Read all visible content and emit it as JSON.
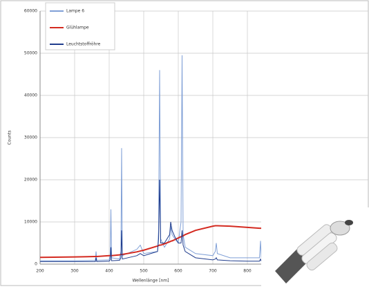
{
  "chart_data": {
    "type": "line",
    "x_label": "Wellenlänge [nm]",
    "y_label": "Counts",
    "x": [
      200,
      300,
      360,
      362,
      364,
      400,
      403,
      405,
      407,
      430,
      434,
      436,
      438,
      480,
      490,
      500,
      540,
      543,
      546,
      549,
      560,
      575,
      578,
      580,
      582,
      590,
      600,
      608,
      611,
      614,
      620,
      650,
      700,
      707,
      710,
      713,
      750,
      800,
      835,
      838,
      840
    ],
    "series": [
      {
        "name": "Lampe 6",
        "color": "#7f9fd6",
        "values": [
          800,
          800,
          900,
          3000,
          900,
          1000,
          2000,
          13000,
          1500,
          1200,
          3000,
          27500,
          2000,
          3500,
          4500,
          2500,
          3000,
          8000,
          46000,
          6000,
          4000,
          6000,
          9000,
          8000,
          7000,
          6000,
          5000,
          10000,
          49500,
          7000,
          4000,
          2500,
          2000,
          3000,
          5000,
          2500,
          1500,
          1500,
          1500,
          5500,
          1500
        ]
      },
      {
        "name": "Glühlampe",
        "color": "#d42a20",
        "values": [
          1600,
          1700,
          1800,
          1800,
          1800,
          2000,
          2000,
          2000,
          2000,
          2200,
          2300,
          2300,
          2300,
          2900,
          3100,
          3300,
          4300,
          4400,
          4500,
          4500,
          4800,
          5300,
          5400,
          5500,
          5500,
          5800,
          6200,
          6500,
          6600,
          6700,
          7000,
          8000,
          9000,
          9100,
          9100,
          9100,
          9000,
          8700,
          8500,
          8500,
          8500
        ]
      },
      {
        "name": "Leuchtstoffröhre",
        "color": "#1f3c8c",
        "values": [
          600,
          600,
          600,
          1500,
          600,
          700,
          1000,
          4000,
          800,
          900,
          1500,
          8000,
          1200,
          2000,
          2500,
          2000,
          3000,
          6000,
          20000,
          5000,
          5000,
          7000,
          10000,
          9000,
          8000,
          6500,
          5000,
          5000,
          8000,
          4500,
          3000,
          1500,
          1000,
          1200,
          1500,
          1000,
          800,
          700,
          700,
          1200,
          700
        ]
      }
    ],
    "xlim": [
      200,
      1150
    ],
    "xticks": [
      200,
      300,
      400,
      500,
      600,
      700,
      800
    ],
    "ylim": [
      0,
      60000
    ],
    "yticks": [
      0,
      10000,
      20000,
      30000,
      40000,
      50000,
      60000
    ],
    "grid": true,
    "legend": "top-left"
  }
}
